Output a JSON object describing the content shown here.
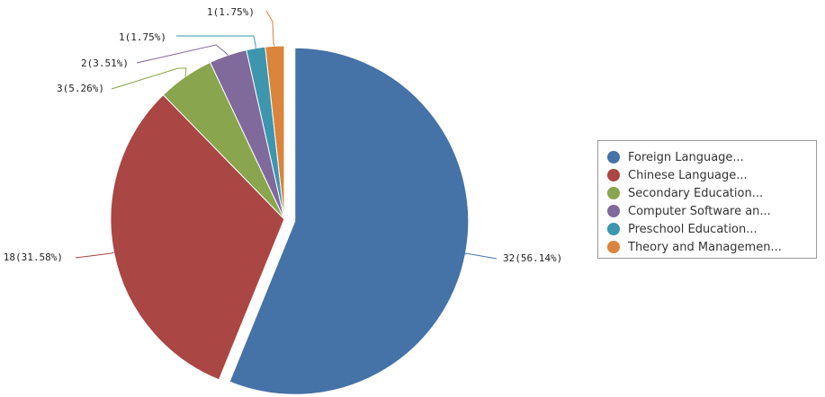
{
  "chart_data": {
    "type": "pie",
    "title": "",
    "slices": [
      {
        "name": "Foreign Language...",
        "value": 32,
        "percent": 56.14,
        "label": "32(56.14%)",
        "color": "#4572a7",
        "exploded": true
      },
      {
        "name": "Chinese Language...",
        "value": 18,
        "percent": 31.58,
        "label": "18(31.58%)",
        "color": "#aa4643",
        "exploded": false
      },
      {
        "name": "Secondary Education...",
        "value": 3,
        "percent": 5.26,
        "label": "3(5.26%)",
        "color": "#89a54e",
        "exploded": false
      },
      {
        "name": "Computer Software an...",
        "value": 2,
        "percent": 3.51,
        "label": "2(3.51%)",
        "color": "#80699b",
        "exploded": false
      },
      {
        "name": "Preschool Education...",
        "value": 1,
        "percent": 1.75,
        "label": "1(1.75%)",
        "color": "#3d96ae",
        "exploded": false
      },
      {
        "name": "Theory and Managemen...",
        "value": 1,
        "percent": 1.75,
        "label": "1(1.75%)",
        "color": "#db843d",
        "exploded": false
      }
    ],
    "legend_position": "right"
  }
}
